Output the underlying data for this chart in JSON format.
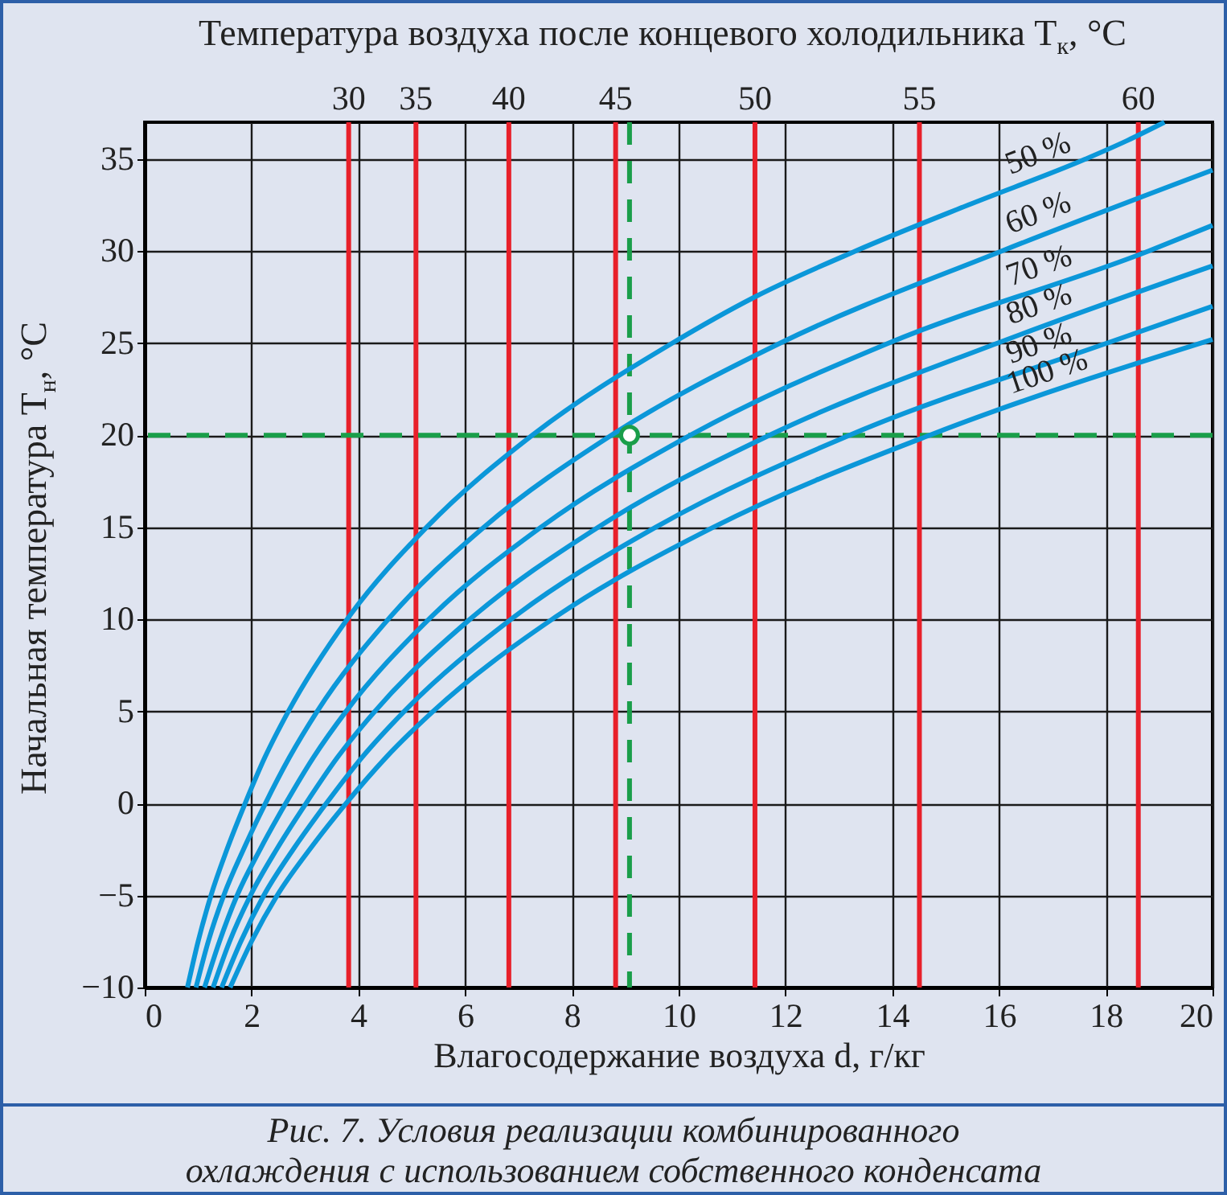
{
  "chart_data": {
    "type": "line",
    "xlabel": "Влагосодержание воздуха d, г/кг",
    "ylabel": "Начальная температура T$_{н}$, °C",
    "annotations": [
      "Температура воздуха после концевого холодильника T$_{к}$, °C",
      "Рис. 7. Условия реализации комбинированного охлаждения с использованием собственного конденсата",
      {
        "text": "30",
        "x": 3.82,
        "y": 37
      },
      {
        "text": "35",
        "x": 5.08,
        "y": 37
      },
      {
        "text": "40",
        "x": 6.82,
        "y": 37
      },
      {
        "text": "45",
        "x": 8.82,
        "y": 37
      },
      {
        "text": "50",
        "x": 11.43,
        "y": 37
      },
      {
        "text": "55",
        "x": 14.51,
        "y": 37
      },
      {
        "text": "60",
        "x": 18.61,
        "y": 37
      }
    ],
    "xlim": [
      0,
      20
    ],
    "xticks": [
      0,
      2,
      4,
      6,
      8,
      10,
      12,
      14,
      16,
      18,
      20
    ],
    "ylim": [
      -10,
      37
    ],
    "yticks": [
      -10,
      -5,
      0,
      5,
      10,
      15,
      20,
      25,
      30,
      35
    ],
    "grid": true,
    "legend": false,
    "series": [
      {
        "name": "50 %",
        "color": "#0b97d9",
        "x": [
          0.8,
          1.0,
          1.24,
          1.54,
          1.88,
          2.25,
          2.69,
          3.79,
          5.28,
          7.26,
          9.88,
          11.42,
          13.31,
          15.42,
          17.62,
          18.4,
          19.1
        ],
        "values": [
          -10,
          -7.5,
          -5,
          -2.5,
          0,
          2.5,
          5,
          10,
          15,
          20,
          25,
          27.5,
          30,
          32.5,
          35,
          36,
          37
        ]
      },
      {
        "name": "60 %",
        "color": "#0b97d9",
        "x": [
          0.96,
          1.19,
          1.48,
          1.85,
          2.26,
          2.71,
          3.23,
          4.56,
          6.35,
          8.74,
          11.9,
          16.05,
          20.0
        ],
        "values": [
          -10,
          -7.5,
          -5,
          -2.5,
          0,
          2.5,
          5,
          10,
          15,
          20,
          25,
          30,
          34.4
        ]
      },
      {
        "name": "70 %",
        "color": "#0b97d9",
        "x": [
          1.12,
          1.4,
          1.73,
          2.16,
          2.64,
          3.16,
          3.77,
          5.32,
          7.42,
          10.22,
          13.93,
          18.8,
          20.0
        ],
        "values": [
          -10,
          -7.5,
          -5,
          -2.5,
          0,
          2.5,
          5,
          10,
          15,
          20,
          25,
          30,
          31.4
        ]
      },
      {
        "name": "80 %",
        "color": "#0b97d9",
        "x": [
          1.28,
          1.59,
          1.98,
          2.47,
          3.02,
          3.61,
          4.31,
          6.09,
          8.49,
          11.7,
          15.97,
          20.0
        ],
        "values": [
          -10,
          -7.5,
          -5,
          -2.5,
          0,
          2.5,
          5,
          10,
          15,
          20,
          25,
          29.2
        ]
      },
      {
        "name": "90 %",
        "color": "#0b97d9",
        "x": [
          1.44,
          1.8,
          2.23,
          2.78,
          3.4,
          4.07,
          4.86,
          6.86,
          9.57,
          13.2,
          18.02,
          20.0
        ],
        "values": [
          -10,
          -7.5,
          -5,
          -2.5,
          0,
          2.5,
          5,
          10,
          15,
          20,
          25,
          27.0
        ]
      },
      {
        "name": "100 %",
        "color": "#0b97d9",
        "x": [
          1.6,
          2.0,
          2.48,
          3.09,
          3.77,
          4.52,
          5.4,
          7.63,
          10.65,
          14.7,
          20.0
        ],
        "values": [
          -10,
          -7.5,
          -5,
          -2.5,
          0,
          2.5,
          5,
          10,
          15,
          20,
          25.2
        ]
      },
      {
        "type": "scatter",
        "marker": "circle",
        "color": "#1a9e4a",
        "x": [
          9.08
        ],
        "values": [
          20
        ]
      }
    ],
    "ref_lines": [
      {
        "axis": "x",
        "value": 3.82,
        "color": "#e8202a"
      },
      {
        "axis": "x",
        "value": 5.08,
        "color": "#e8202a"
      },
      {
        "axis": "x",
        "value": 6.82,
        "color": "#e8202a"
      },
      {
        "axis": "x",
        "value": 8.82,
        "color": "#e8202a"
      },
      {
        "axis": "x",
        "value": 11.43,
        "color": "#e8202a"
      },
      {
        "axis": "x",
        "value": 14.51,
        "color": "#e8202a"
      },
      {
        "axis": "x",
        "value": 18.61,
        "color": "#e8202a"
      },
      {
        "axis": "x",
        "value": 9.08,
        "color": "#1a9e4a",
        "line_style": "dashed"
      },
      {
        "axis": "y",
        "value": 20,
        "color": "#1a9e4a",
        "line_style": "dashed"
      }
    ]
  }
}
